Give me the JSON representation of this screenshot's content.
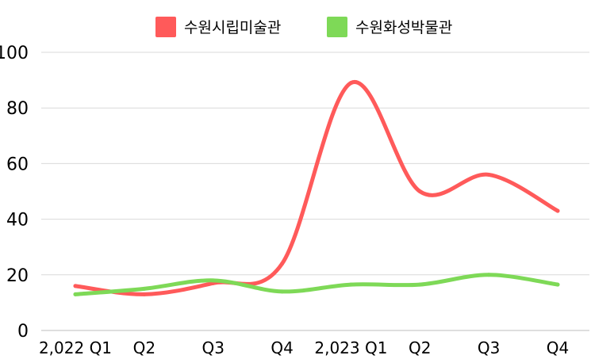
{
  "chart_data": {
    "type": "line",
    "title": "",
    "xlabel": "",
    "ylabel": "",
    "ylim": [
      0,
      100
    ],
    "yticks": [
      "0",
      "20",
      "40",
      "60",
      "80",
      "100"
    ],
    "categories": [
      "2,022 Q1",
      "Q2",
      "Q3",
      "Q4",
      "2,023 Q1",
      "Q2",
      "Q3",
      "Q4"
    ],
    "grid": true,
    "legend_position": "top-center",
    "series": [
      {
        "name": "수원시립미술관",
        "color": "#ff5a5a",
        "values": [
          16,
          13,
          17,
          24,
          89,
          50,
          56,
          43
        ]
      },
      {
        "name": "수원화성박물관",
        "color": "#7ed957",
        "values": [
          13,
          15,
          18,
          14,
          16.5,
          16.5,
          20,
          16.5
        ]
      }
    ]
  }
}
